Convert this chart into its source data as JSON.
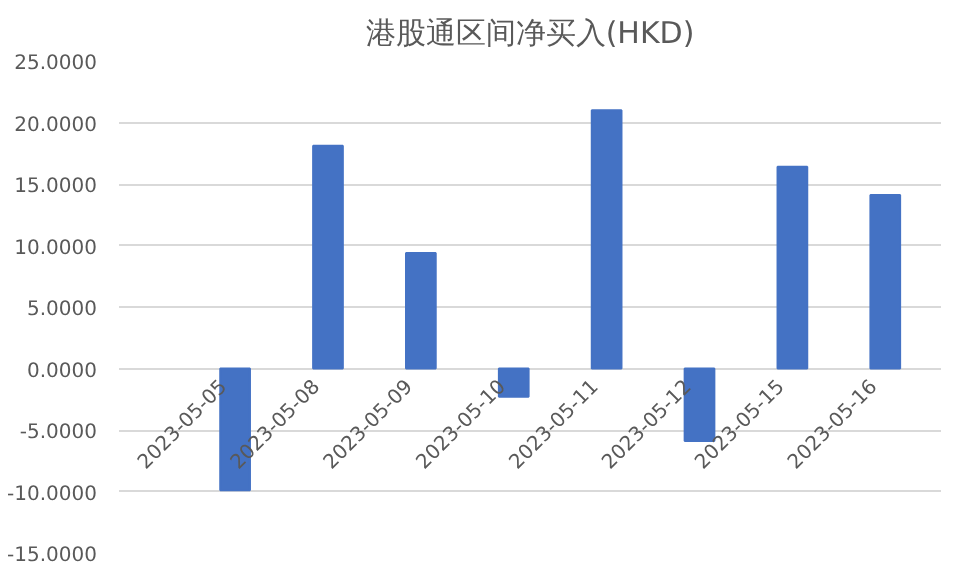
{
  "chart_data": {
    "type": "bar",
    "title": "港股通区间净买入(HKD)",
    "categories": [
      "2023-05-05",
      "2023-05-08",
      "2023-05-09",
      "2023-05-10",
      "2023-05-11",
      "2023-05-12",
      "2023-05-15",
      "2023-05-16"
    ],
    "values": [
      -9.9,
      18.1,
      9.4,
      -2.3,
      21.0,
      -5.9,
      16.4,
      14.1
    ],
    "color": "#4472c4",
    "ylim": [
      -15,
      25
    ],
    "yticks": [
      {
        "value": -15,
        "label": "-15.0000"
      },
      {
        "value": -10,
        "label": "-10.0000"
      },
      {
        "value": -5,
        "label": "-5.0000"
      },
      {
        "value": 0,
        "label": "0.0000"
      },
      {
        "value": 5,
        "label": "5.0000"
      },
      {
        "value": 10,
        "label": "10.0000"
      },
      {
        "value": 15,
        "label": "15.0000"
      },
      {
        "value": 20,
        "label": "20.0000"
      },
      {
        "value": 25,
        "label": "25.0000"
      }
    ],
    "grid": "y"
  }
}
